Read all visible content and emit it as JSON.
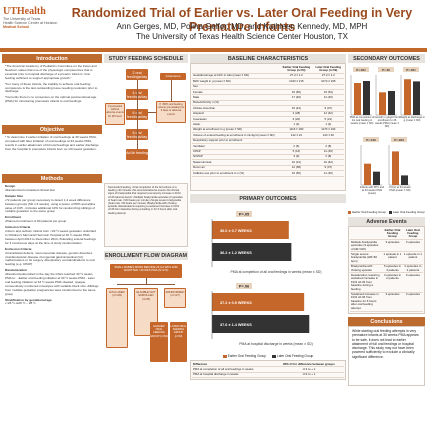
{
  "header": {
    "logo_main": "UTHealth",
    "logo_sub_1": "The University of Texas",
    "logo_sub_2": "Health Science Center at Houston",
    "logo_school": "Medical School",
    "title": "Randomized Trial of Earlier vs. Later Oral Feeding in Very Premature Infants",
    "authors": "Ann Gerges, MD, Polina Gelfer, MD, and Kathleen Kennedy, MD, MPH",
    "affiliation": "The University of Texas Health Science Center Houston, TX"
  },
  "introduction": {
    "title": "Introduction",
    "p1": "*The American Academy of Pediatrics Committee on the Fetus and Newborn states that one of the physiologic competencies that is essential prior to hospital discharge of a preterm infant is \"oral feeding sufficient to support appropriate growth.\"",
    "p2": "*For many of these infants, the inability to achieve oral feeding competence is the last outstanding issue needing resolution prior to discharge.",
    "p3": "*Currently there is no consensus on the optimal postmenstrual age (PMA) for introducing premature infants to oral feedings."
  },
  "objective": {
    "title": "Objective",
    "p1": "* To determine if earlier initiation of oral feedings at 30 weeks PMA, compared with later initiation of oral feedings at 33 weeks PMA, results in earlier attainment of full oral feedings and earlier discharge from the hospital in premature infants born at <29 weeks gestation."
  },
  "methods": {
    "title": "Methods",
    "design_h": "Design",
    "design": "•Randomized unmasked clinical trial",
    "sample_h": "Sample Size",
    "sample": "•72 patients per group necessary to detect 1.2 week difference between groups (SD 1.6 weeks), using a power of 80% and alpha value of 0.05 - Includes additional 10% for randomizing siblings of multiple gestation to the same group",
    "enroll_h": "Enrollment",
    "enroll": "•Planned enrollment of 90 patients per group",
    "incl_h": "Inclusion Criteria",
    "incl": "•Inborn and outborn infants born <29 ½ weeks gestation •Admitted to Children's Memorial Hermann Hospital at 30 ½ weeks PMA between April 2013 to December 2014 •Tolerating enteral feedings for 3 continuous days at the time of study randomization",
    "excl_h": "Exclusion Criteria",
    "excl": "•Craniofacial defects, neuromuscular disease, genetic disorders •Cardiovascular disease •Congenital gastrointestinal (GI) malformations or GI surgery •Respiratory contraindications to oral feeding (e.g. CPAP)",
    "rand_h": "Randomization",
    "rand": "•Randomized/enrolled in the day the infant reached 30 ½ weeks PMA to: - Earlier oral feeding initiation at 30 ½ weeks PMA - Later oral feeding initiation at 33 ½ weeks PMA •Sealed, opaque, consecutively numbered envelopes with variable block size •Siblings from multiple gestation pregnancies were randomized to the same group",
    "strat_h": "Stratification by gestational age",
    "strat": "•<26 ½ •≥26 ½ – 28 ½"
  },
  "study_schedule": {
    "title": "STUDY FEEDING SCHEDULE",
    "nodes": [
      "2 oral feedings/day",
      "4 oral feedings/day",
      "6 oral feedings/day",
      "8 oral feedings/day",
      "Ad lib feeding"
    ],
    "side_label_1": "If successful without adverse events for 48 hours",
    "side_label_2": "Intolerance",
    "side_label_3": "If <80% oral feeding volume (cumulative) for 3 days or adverse events",
    "notes": "Successful Feeding: •Oral completion of the full volume of a feeding ≤30 minutes •No oromotor/adverse events •No clinical signs of bradycardia that required a temporary increase in FiO2 ≥0.06 Adverse Event: •Multiple bradycardia episodes (3 episodes of heart rate <100 beats per minute) •Single severe bradycardia (heart rate <60 beats per minute) •Bradycardia with choking episode •Desaturations requiring a sustained increase in FiO2 ≥0.06 from baseline during a feeding or for 6 hours after oral feeding attempt"
  },
  "enrollment_flow": {
    "title": "ENROLLMENT FLOW DIAGRAM",
    "top": "SMALL BABIES BORN BEFORE 29 GA WKS AND ADMITTED <30 WKS PMA (N=174)",
    "boxes": [
      "EXCLUDED (n=129)",
      "ELIGIBLE NOT ENROLLED (n=35)",
      "RANDOMIZED (n=127)"
    ],
    "arms": [
      "EARLIER ORAL FEEDING GROUP (n=64)",
      "LATER ORAL FEEDING GROUP (n=63)"
    ]
  },
  "baseline": {
    "title": "BASELINE CHARACTERISTICS",
    "headers": [
      "",
      "Earlier Oral Feeding Group (n=64)",
      "Later Oral Feeding Group (n=59)"
    ],
    "rows": [
      [
        "Gestational age at birth in wks (mean ± SD)",
        "27.3 ± 1.2",
        "27.3 ± 1.2"
      ],
      [
        "Birth weight in g (mean ± SD)",
        "1043 ± 215",
        "1072 ± 245"
      ],
      [
        "Sex",
        "",
        ""
      ],
      [
        "Female",
        "15 (50)",
        "15 (54)"
      ],
      [
        "Male",
        "17 (46)",
        "11 (46)"
      ],
      [
        "Race/ethnicity n (%)",
        "",
        ""
      ],
      [
        "African-American",
        "15 (44)",
        "9 (37)"
      ],
      [
        "Hispanic",
        "4 (28)",
        "12 (42)"
      ],
      [
        "Caucasian",
        "6 (20)",
        "5 (21)"
      ],
      [
        "Asian",
        "1 (3)",
        "1 (4)"
      ],
      [
        "Weight at enrollment in g (mean ± SD)",
        "1116 ± 180",
        "1170 ± 193"
      ],
      [
        "Volume of enteral feeding at enrollment in mL/kg/d (mean ± SD)",
        "142 ± 24",
        "143 ± 40"
      ],
      [
        "Respiratory support prior to enrollment",
        "",
        ""
      ],
      [
        "Ventilator",
        "2 (6)",
        "2 (8)"
      ],
      [
        "CPAP",
        "5 (16)",
        "11 (46)"
      ],
      [
        "NCPAP",
        "3 (9)",
        "2 (8)"
      ],
      [
        "Nasal cannula",
        "10 (31)",
        "10 (42)"
      ],
      [
        "Room air",
        "12 (38)",
        "9 (37)"
      ],
      [
        "Caffeine use prior to enrollment in n (%)",
        "16 (50)",
        "11 (46)"
      ]
    ]
  },
  "primary_outcomes": {
    "title": "PRIMARY OUTCOMES",
    "p_value_1": "P=.05",
    "p_value_2": "P=.06",
    "caption_1": "PMA at completion of all oral feedings in weeks (mean ± SD)",
    "caption_2": "PMA at hospital discharge in weeks (mean ± SD)",
    "label_e1": "36.0 ± 0.7 WEEKS",
    "label_l1": "36.2 ± 1.2 WEEKS",
    "label_e2": "37.2 ± 0.9 WEEKS",
    "label_l2": "37.6 ± 1.4 WEEKS",
    "diff_header": "Difference",
    "diff_col": "95% CI for difference between groups",
    "diff_rows": [
      [
        "PMA at completion of all oral feedings in weeks",
        "-0.3 to + 1"
      ],
      [
        "PMA at hospital discharge in weeks",
        "-0.9 to + 1"
      ]
    ]
  },
  "legend": {
    "earlier": "Earlier Oral Feeding Group",
    "later": "Later Oral Feeding Group"
  },
  "secondary": {
    "title": "SECONDARY OUTCOMES",
    "charts": [
      {
        "caption": "PMA at completion of 1st oral feeding in weeks (mean ± SD)",
        "p": "P<.001"
      },
      {
        "caption": "Growth in g/kg/d from enrollment to 36 weeks PMA (mean ± SD)",
        "p": "P=.30"
      },
      {
        "caption": "Weight at discharge in g (mean ± SD)",
        "p": "P=.001"
      },
      {
        "caption": "Infants with PPV and at 33 weeks PMA (mean)",
        "p": "P=.016"
      },
      {
        "caption": "PO(L) at 33 weeks PMA (mean ± SD)",
        "p": "P=.003"
      }
    ]
  },
  "chart_data": [
    {
      "type": "bar",
      "title": "PMA at completion of all oral feedings in weeks (mean ± SD)",
      "categories": [
        "Earlier Oral Feeding Group",
        "Later Oral Feeding Group"
      ],
      "values": [
        36.0,
        36.2
      ],
      "ylim": [
        30,
        40
      ]
    },
    {
      "type": "bar",
      "title": "PMA at hospital discharge in weeks (mean ± SD)",
      "categories": [
        "Earlier Oral Feeding Group",
        "Later Oral Feeding Group"
      ],
      "values": [
        37.2,
        37.6
      ],
      "ylim": [
        30,
        40
      ]
    },
    {
      "type": "bar",
      "categories": [
        "Earlier",
        "Later"
      ],
      "values": [
        32,
        34
      ],
      "ylim": [
        0,
        40
      ]
    },
    {
      "type": "bar",
      "categories": [
        "Earlier",
        "Later"
      ],
      "values": [
        17,
        18
      ],
      "ylim": [
        0,
        30
      ]
    },
    {
      "type": "bar",
      "categories": [
        "Earlier",
        "Later"
      ],
      "values": [
        2680,
        2520
      ],
      "ylim": [
        0,
        3000
      ]
    },
    {
      "type": "bar",
      "categories": [
        "Earlier",
        "Later"
      ],
      "values": [
        16,
        10
      ],
      "ylim": [
        0,
        30
      ]
    },
    {
      "type": "bar",
      "categories": [
        "Earlier",
        "Later"
      ],
      "values": [
        4.2,
        1.2
      ],
      "ylim": [
        0,
        5
      ]
    }
  ],
  "adverse": {
    "title": "Adverse Events",
    "headers": [
      "",
      "Earlier Oral Feeding Group",
      "Later Oral Feeding Group"
    ],
    "rows": [
      [
        "Multiple bradycardia episodes (3 episodes of HR<100)",
        "3 episodes",
        "3 episodes"
      ],
      [
        "Single severe bradycardia (HR<60 bpm)",
        "1 episode in 1 patient",
        "1 episode in 1 patient"
      ],
      [
        "Bradycardia with choking episode",
        "5 episodes in 3 patients",
        "2 episodes in 2 patients"
      ],
      [
        "Desaturation requiring sustained increase in FiO2 ≥0.06 from baseline during a feeding",
        "3 episodes in 2 patients",
        "0 episodes"
      ],
      [
        "Sustained increase in FiO2 ≥0.06 from baseline for 6 hours after oral feeding attempt",
        "3 episodes",
        "3 episodes"
      ]
    ]
  },
  "conclusions": {
    "title": "Conclusions",
    "text": "While starting oral feeding attempts in very premature infants at 30 weeks PMA appears to be safe, it does not lead to earlier attainment of full oral feedings or hospital discharge. This study may not have been powered sufficiently to exclude a clinically significant difference."
  },
  "colors": {
    "accent": "#bd6a2e",
    "earlier": "#c5662b",
    "later": "#333333"
  }
}
